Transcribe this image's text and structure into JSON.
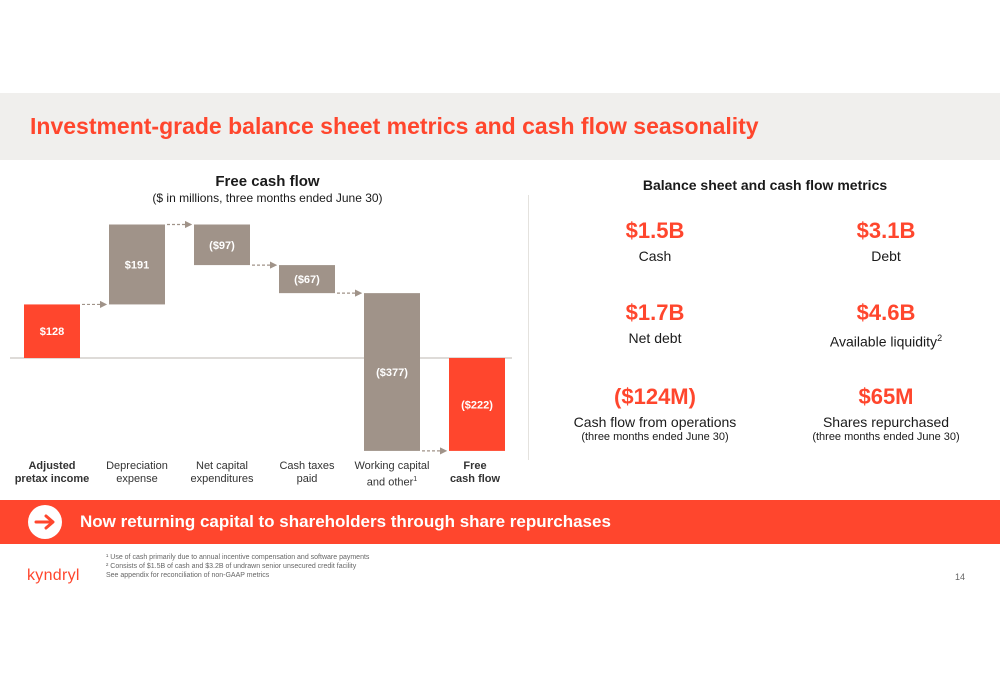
{
  "page": {
    "title": "Investment-grade balance sheet metrics and cash flow seasonality",
    "page_number": "14",
    "logo": "kyndryl"
  },
  "colors": {
    "accent": "#ff462d",
    "bar_gray": "#a09389",
    "band": "#f0efed"
  },
  "left_panel": {
    "title": "Free cash flow",
    "subtitle": "($ in millions, three months ended June 30)"
  },
  "chart_data": {
    "type": "bar",
    "subtype": "waterfall",
    "title": "Free cash flow",
    "subtitle": "($ in millions, three months ended June 30)",
    "categories": [
      {
        "l1": "Adjusted",
        "l2": "pretax income",
        "bold": true
      },
      {
        "l1": "Depreciation",
        "l2": "expense",
        "bold": false
      },
      {
        "l1": "Net capital",
        "l2": "expenditures",
        "bold": false
      },
      {
        "l1": "Cash taxes",
        "l2": "paid",
        "bold": false
      },
      {
        "l1": "Working capital",
        "l2": "and other",
        "sup": "1",
        "bold": false
      },
      {
        "l1": "Free",
        "l2": "cash flow",
        "bold": true
      }
    ],
    "values": [
      128,
      191,
      -97,
      -67,
      -377,
      -222
    ],
    "labels": [
      "$128",
      "$191",
      "($97)",
      "($67)",
      "($377)",
      "($222)"
    ],
    "kinds": [
      "total",
      "delta",
      "delta",
      "delta",
      "delta",
      "total"
    ],
    "colors": [
      "#ff462d",
      "#a09389",
      "#a09389",
      "#a09389",
      "#a09389",
      "#ff462d"
    ],
    "connectors": "dashed arrows"
  },
  "right_panel": {
    "title": "Balance sheet and cash flow metrics",
    "metrics": [
      {
        "value": "$1.5B",
        "label": "Cash",
        "sup": "",
        "note": ""
      },
      {
        "value": "$3.1B",
        "label": "Debt",
        "sup": "",
        "note": ""
      },
      {
        "value": "$1.7B",
        "label": "Net debt",
        "sup": "",
        "note": ""
      },
      {
        "value": "$4.6B",
        "label": "Available liquidity",
        "sup": "2",
        "note": ""
      },
      {
        "value": "($124M)",
        "label": "Cash flow from operations",
        "sup": "",
        "note": "(three months ended June 30)"
      },
      {
        "value": "$65M",
        "label": "Shares repurchased",
        "sup": "",
        "note": "(three months ended June 30)"
      }
    ]
  },
  "banner": {
    "text": "Now returning capital to shareholders through share repurchases",
    "icon": "arrow-right-icon"
  },
  "footnotes": [
    "¹ Use of cash primarily due to annual incentive compensation and software payments",
    "² Consists of $1.5B of cash and $3.2B of undrawn senior unsecured credit facility",
    "See appendix for reconciliation of non-GAAP metrics"
  ]
}
